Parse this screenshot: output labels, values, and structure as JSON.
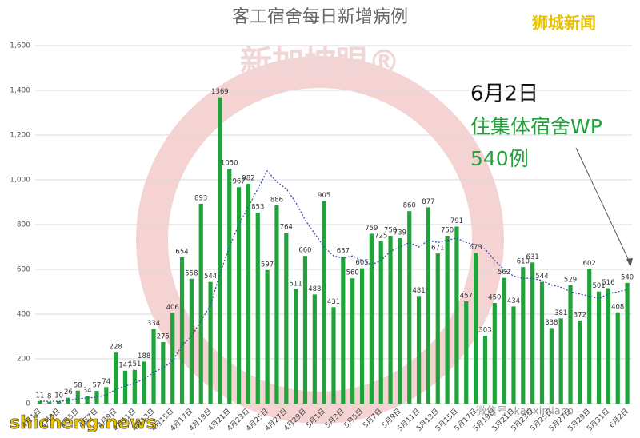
{
  "chart_data": {
    "type": "bar",
    "title": "客工宿舍每日新增病例",
    "categories": [
      "4月1日",
      null,
      "4月3日",
      null,
      "4月5日",
      null,
      "4月7日",
      null,
      "4月9日",
      null,
      "4月11日",
      null,
      "4月13日",
      null,
      "4月15日",
      null,
      "4月17日",
      null,
      "4月19日",
      null,
      "4月21日",
      null,
      "4月23日",
      null,
      "4月25日",
      null,
      "4月27日",
      null,
      "4月29日",
      null,
      "5月1日",
      null,
      "5月3日",
      null,
      "5月5日",
      null,
      "5月7日",
      null,
      "5月9日",
      null,
      "5月11日",
      null,
      "5月13日",
      null,
      "5月15日",
      null,
      "5月17日",
      null,
      "5月19日",
      null,
      "5月21日",
      null,
      "5月23日",
      null,
      "5月25日",
      null,
      "5月27日",
      null,
      "5月29日",
      null,
      "5月31日",
      null,
      "6月2日"
    ],
    "values": [
      11,
      8,
      10,
      26,
      58,
      34,
      57,
      74,
      228,
      147,
      151,
      188,
      334,
      275,
      406,
      654,
      558,
      893,
      544,
      1369,
      1050,
      967,
      982,
      853,
      597,
      886,
      764,
      511,
      660,
      488,
      905,
      431,
      657,
      560,
      605,
      759,
      725,
      750,
      739,
      860,
      481,
      877,
      671,
      750,
      791,
      457,
      673,
      303,
      450,
      562,
      434,
      610,
      631,
      544,
      338,
      381,
      529,
      372,
      602,
      501,
      516,
      408,
      540
    ],
    "color": "#1fa33a",
    "trend": {
      "color": "#3b4fa8",
      "values": [
        11,
        10,
        10,
        14,
        22,
        25,
        29,
        38,
        64,
        78,
        92,
        110,
        140,
        160,
        190,
        260,
        300,
        370,
        440,
        580,
        700,
        800,
        880,
        960,
        1040,
        990,
        960,
        900,
        820,
        760,
        700,
        660,
        650,
        660,
        640,
        620,
        640,
        680,
        700,
        720,
        700,
        730,
        720,
        730,
        740,
        720,
        710,
        690,
        640,
        600,
        570,
        560,
        560,
        550,
        530,
        520,
        500,
        490,
        480,
        470,
        490,
        500,
        510
      ]
    },
    "ylim": [
      0,
      1600
    ],
    "yticks": [
      0,
      200,
      400,
      600,
      800,
      {
        "value": 1000,
        "label": "1,000"
      },
      {
        "value": 1200,
        "label": "1,200"
      },
      {
        "value": 1400,
        "label": "1,400"
      },
      {
        "value": 1600,
        "label": "1,600"
      }
    ],
    "grid": true,
    "annotations": [
      "6月2日",
      "住集体宿舍WP",
      "540例"
    ],
    "brand": "狮城新闻",
    "site": "shicheng.news",
    "wechat": "微信号: kanxinjiapo",
    "watermark": "新加坡眼®"
  }
}
